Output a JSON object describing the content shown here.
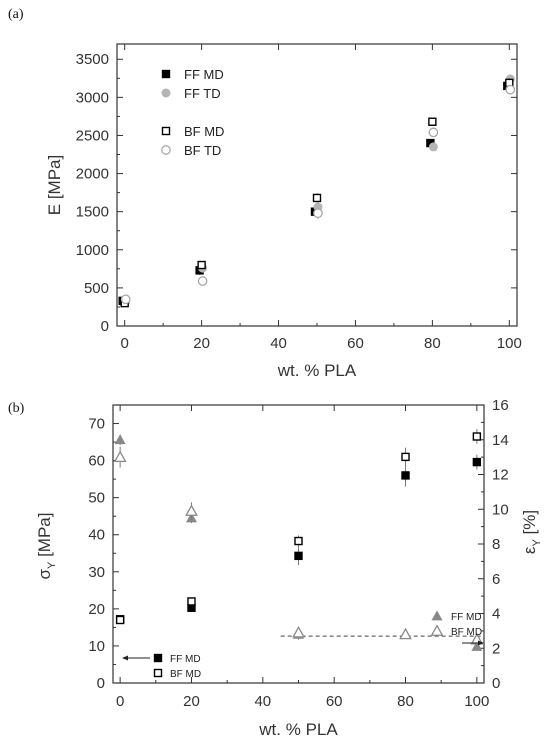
{
  "chart_data": [
    {
      "panel": "(a)",
      "type": "scatter",
      "xlabel": "wt. % PLA",
      "ylabel": "E [MPa]",
      "xlim": [
        -2,
        102
      ],
      "ylim": [
        0,
        3700
      ],
      "xticks": [
        0,
        20,
        40,
        60,
        80,
        100
      ],
      "yticks": [
        0,
        500,
        1000,
        1500,
        2000,
        2500,
        3000,
        3500
      ],
      "legend_position": "top-left",
      "series": [
        {
          "name": "FF MD",
          "marker": "square-filled",
          "color": "#000000",
          "x": [
            0,
            20,
            50,
            80,
            100
          ],
          "y": [
            330,
            730,
            1500,
            2400,
            3150
          ],
          "err": [
            40,
            60,
            60,
            40,
            60
          ]
        },
        {
          "name": "FF TD",
          "marker": "circle-filled",
          "color": "#b5b5b5",
          "x": [
            0,
            20,
            50,
            80,
            100
          ],
          "y": [
            320,
            760,
            1560,
            2350,
            3240
          ],
          "err": [
            40,
            50,
            70,
            50,
            50
          ]
        },
        {
          "name": "BF MD",
          "marker": "square-open",
          "color": "#000000",
          "x": [
            0,
            20,
            50,
            80,
            100
          ],
          "y": [
            300,
            800,
            1680,
            2680,
            3190
          ],
          "err": [
            40,
            50,
            60,
            50,
            60
          ]
        },
        {
          "name": "BF TD",
          "marker": "circle-open",
          "color": "#a8a8a8",
          "x": [
            0,
            20,
            50,
            80,
            100
          ],
          "y": [
            350,
            590,
            1480,
            2540,
            3100
          ],
          "err": [
            40,
            40,
            80,
            60,
            60
          ]
        }
      ]
    },
    {
      "panel": "(b)",
      "type": "scatter",
      "xlabel": "wt. % PLA",
      "ylabel_left": "σ",
      "ylabel_left_sub": "Y",
      "ylabel_left_unit": " [MPa]",
      "ylabel_right": "ε",
      "ylabel_right_sub": "Y",
      "ylabel_right_unit": " [%]",
      "xlim": [
        -2,
        102
      ],
      "ylim_left": [
        0,
        75
      ],
      "ylim_right": [
        0,
        16
      ],
      "xticks": [
        0,
        20,
        40,
        60,
        80,
        100
      ],
      "yticks_left": [
        0,
        10,
        20,
        30,
        40,
        50,
        60,
        70
      ],
      "yticks_right": [
        0,
        2,
        4,
        6,
        8,
        10,
        12,
        14,
        16
      ],
      "dashed_reference": {
        "axis": "right",
        "y": 2.7,
        "x_from": 45,
        "x_to": 102
      },
      "series": [
        {
          "name": "FF MD",
          "axis": "left",
          "marker": "square-filled",
          "color": "#000000",
          "x": [
            0,
            20,
            50,
            80,
            100
          ],
          "y": [
            17.2,
            20.3,
            34.3,
            56,
            59.6
          ],
          "err": [
            1,
            1,
            2.5,
            3,
            2
          ]
        },
        {
          "name": "BF MD",
          "axis": "left",
          "marker": "square-open",
          "color": "#000000",
          "x": [
            0,
            20,
            50,
            80,
            100
          ],
          "y": [
            17,
            22,
            38.3,
            61,
            66.5
          ],
          "err": [
            1,
            1,
            1.5,
            2.5,
            2
          ]
        },
        {
          "name": "FF MD",
          "axis": "right",
          "marker": "triangle-filled",
          "color": "#888888",
          "x": [
            0,
            20,
            50,
            80,
            100
          ],
          "y": [
            14,
            9.5,
            2.8,
            2.8,
            2.1
          ],
          "err": [
            0.3,
            0.3,
            0.3,
            0.2,
            0.2
          ]
        },
        {
          "name": "BF MD",
          "axis": "right",
          "marker": "triangle-open",
          "color": "#888888",
          "x": [
            0,
            20,
            50,
            80,
            100
          ],
          "y": [
            13,
            9.9,
            2.9,
            2.8,
            2.5
          ],
          "err": [
            0.6,
            0.5,
            0.2,
            0.2,
            0.2
          ]
        }
      ],
      "legend_left": {
        "position": "bottom-left",
        "items": [
          "FF MD",
          "BF MD"
        ]
      },
      "legend_right": {
        "position": "right",
        "items": [
          "FF MD",
          "BF MD"
        ]
      }
    }
  ]
}
